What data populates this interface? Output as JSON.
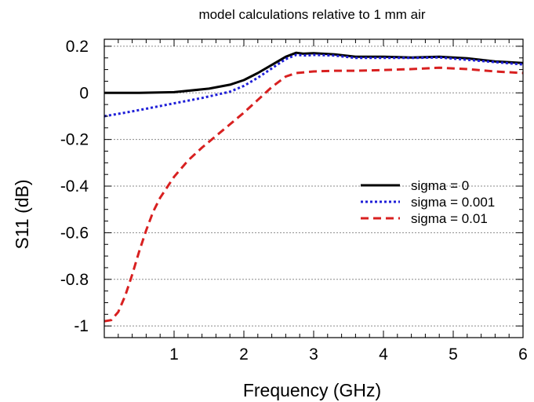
{
  "chart_data": {
    "type": "line",
    "title": "model calculations relative to 1 mm air",
    "xlabel": "Frequency (GHz)",
    "ylabel": "S11 (dB)",
    "xlim": [
      0,
      6
    ],
    "ylim": [
      -1.05,
      0.23
    ],
    "x_ticks": [
      1,
      2,
      3,
      4,
      5,
      6
    ],
    "x_tick_labels": [
      "1",
      "2",
      "3",
      "4",
      "5",
      "6"
    ],
    "y_ticks": [
      -1,
      -0.8,
      -0.6,
      -0.4,
      -0.2,
      0,
      0.2
    ],
    "y_tick_labels": [
      "-1",
      "-0.8",
      "-0.6",
      "-0.4",
      "-0.2",
      "0",
      "0.2"
    ],
    "grid": "horizontal dotted",
    "legend_position": "right-center",
    "series": [
      {
        "name": "sigma = 0",
        "color": "#000000",
        "dash": "solid",
        "points": [
          [
            0,
            0.0
          ],
          [
            0.5,
            0.0
          ],
          [
            1.0,
            0.003
          ],
          [
            1.5,
            0.018
          ],
          [
            1.8,
            0.035
          ],
          [
            2.0,
            0.055
          ],
          [
            2.2,
            0.085
          ],
          [
            2.4,
            0.12
          ],
          [
            2.6,
            0.155
          ],
          [
            2.75,
            0.172
          ],
          [
            2.85,
            0.168
          ],
          [
            3.0,
            0.17
          ],
          [
            3.3,
            0.165
          ],
          [
            3.6,
            0.155
          ],
          [
            4.0,
            0.155
          ],
          [
            4.4,
            0.152
          ],
          [
            4.8,
            0.155
          ],
          [
            5.2,
            0.148
          ],
          [
            5.6,
            0.135
          ],
          [
            6.0,
            0.128
          ]
        ]
      },
      {
        "name": "sigma = 0.001",
        "color": "#1f1fd8",
        "dash": "dotted",
        "points": [
          [
            0,
            -0.1
          ],
          [
            0.3,
            -0.085
          ],
          [
            0.6,
            -0.068
          ],
          [
            1.0,
            -0.045
          ],
          [
            1.4,
            -0.022
          ],
          [
            1.8,
            0.005
          ],
          [
            2.0,
            0.03
          ],
          [
            2.2,
            0.065
          ],
          [
            2.4,
            0.105
          ],
          [
            2.6,
            0.145
          ],
          [
            2.75,
            0.163
          ],
          [
            2.9,
            0.16
          ],
          [
            3.0,
            0.163
          ],
          [
            3.3,
            0.16
          ],
          [
            3.6,
            0.15
          ],
          [
            4.0,
            0.15
          ],
          [
            4.4,
            0.15
          ],
          [
            4.8,
            0.152
          ],
          [
            5.2,
            0.142
          ],
          [
            5.6,
            0.132
          ],
          [
            6.0,
            0.122
          ]
        ]
      },
      {
        "name": "sigma = 0.01",
        "color": "#d82020",
        "dash": "dashed",
        "points": [
          [
            0,
            -0.98
          ],
          [
            0.1,
            -0.975
          ],
          [
            0.2,
            -0.94
          ],
          [
            0.3,
            -0.87
          ],
          [
            0.4,
            -0.78
          ],
          [
            0.5,
            -0.68
          ],
          [
            0.6,
            -0.59
          ],
          [
            0.7,
            -0.51
          ],
          [
            0.8,
            -0.45
          ],
          [
            1.0,
            -0.36
          ],
          [
            1.2,
            -0.29
          ],
          [
            1.4,
            -0.235
          ],
          [
            1.6,
            -0.185
          ],
          [
            1.8,
            -0.135
          ],
          [
            2.0,
            -0.085
          ],
          [
            2.2,
            -0.03
          ],
          [
            2.4,
            0.025
          ],
          [
            2.6,
            0.07
          ],
          [
            2.75,
            0.085
          ],
          [
            3.0,
            0.092
          ],
          [
            3.3,
            0.095
          ],
          [
            3.6,
            0.095
          ],
          [
            4.0,
            0.098
          ],
          [
            4.4,
            0.102
          ],
          [
            4.8,
            0.108
          ],
          [
            5.2,
            0.102
          ],
          [
            5.6,
            0.092
          ],
          [
            6.0,
            0.085
          ]
        ]
      }
    ]
  }
}
